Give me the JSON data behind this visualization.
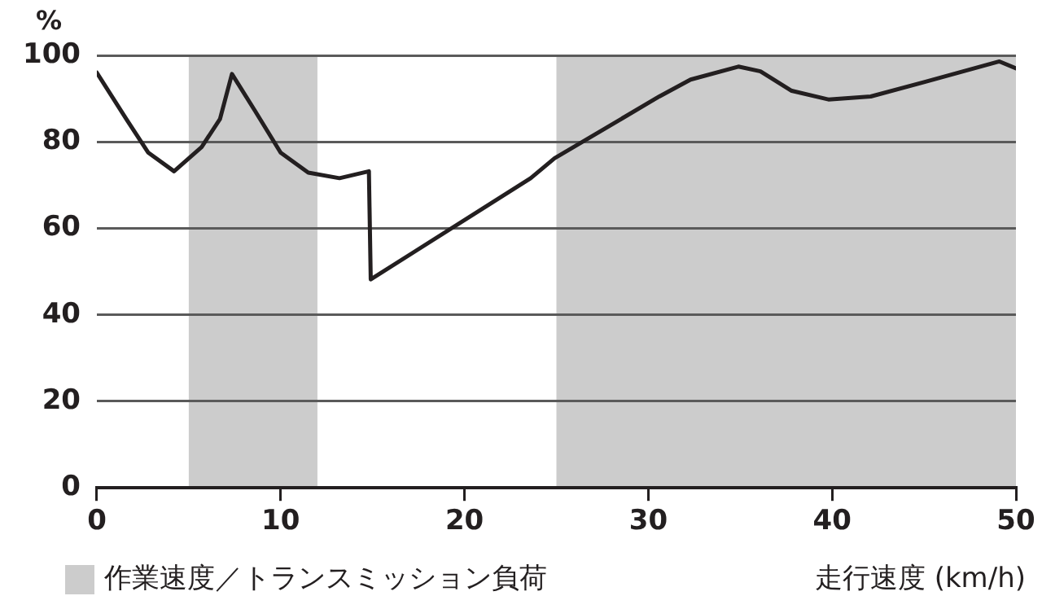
{
  "chart_data": {
    "type": "line",
    "xlabel": "走行速度 (km/h)",
    "ylabel": "%",
    "x": [
      0,
      1.6,
      2.8,
      4.2,
      5.7,
      6.7,
      7.35,
      8.6,
      10,
      11.5,
      13.2,
      14.8,
      14.9,
      23.6,
      24.9,
      30.6,
      32.3,
      34.9,
      36.1,
      37.8,
      39.8,
      42.1,
      45,
      49.1,
      50
    ],
    "series": [
      {
        "color": "#231f20",
        "values": [
          96,
          85.3,
          77.5,
          73.2,
          78.8,
          85.3,
          95.7,
          87.2,
          77.5,
          72.9,
          71.6,
          73.2,
          48.2,
          71.6,
          76.2,
          90.5,
          94.4,
          97.4,
          96.3,
          91.8,
          89.8,
          90.5,
          93.8,
          98.6,
          97
        ]
      }
    ],
    "xlim": [
      0,
      50
    ],
    "xticks": [
      0,
      10,
      20,
      30,
      40,
      50
    ],
    "ylim": [
      0,
      100
    ],
    "yticks": [
      0,
      20,
      40,
      60,
      80,
      100
    ],
    "bands": [
      {
        "axis": "x",
        "from": 5,
        "to": 12,
        "label": "作業速度／トランスミッション負荷",
        "color": "#cccccc"
      },
      {
        "axis": "x",
        "from": 25,
        "to": 50,
        "color": "#cccccc"
      }
    ],
    "grid": "y",
    "marker": "none",
    "line_style": "solid",
    "legend": "bottom left"
  }
}
